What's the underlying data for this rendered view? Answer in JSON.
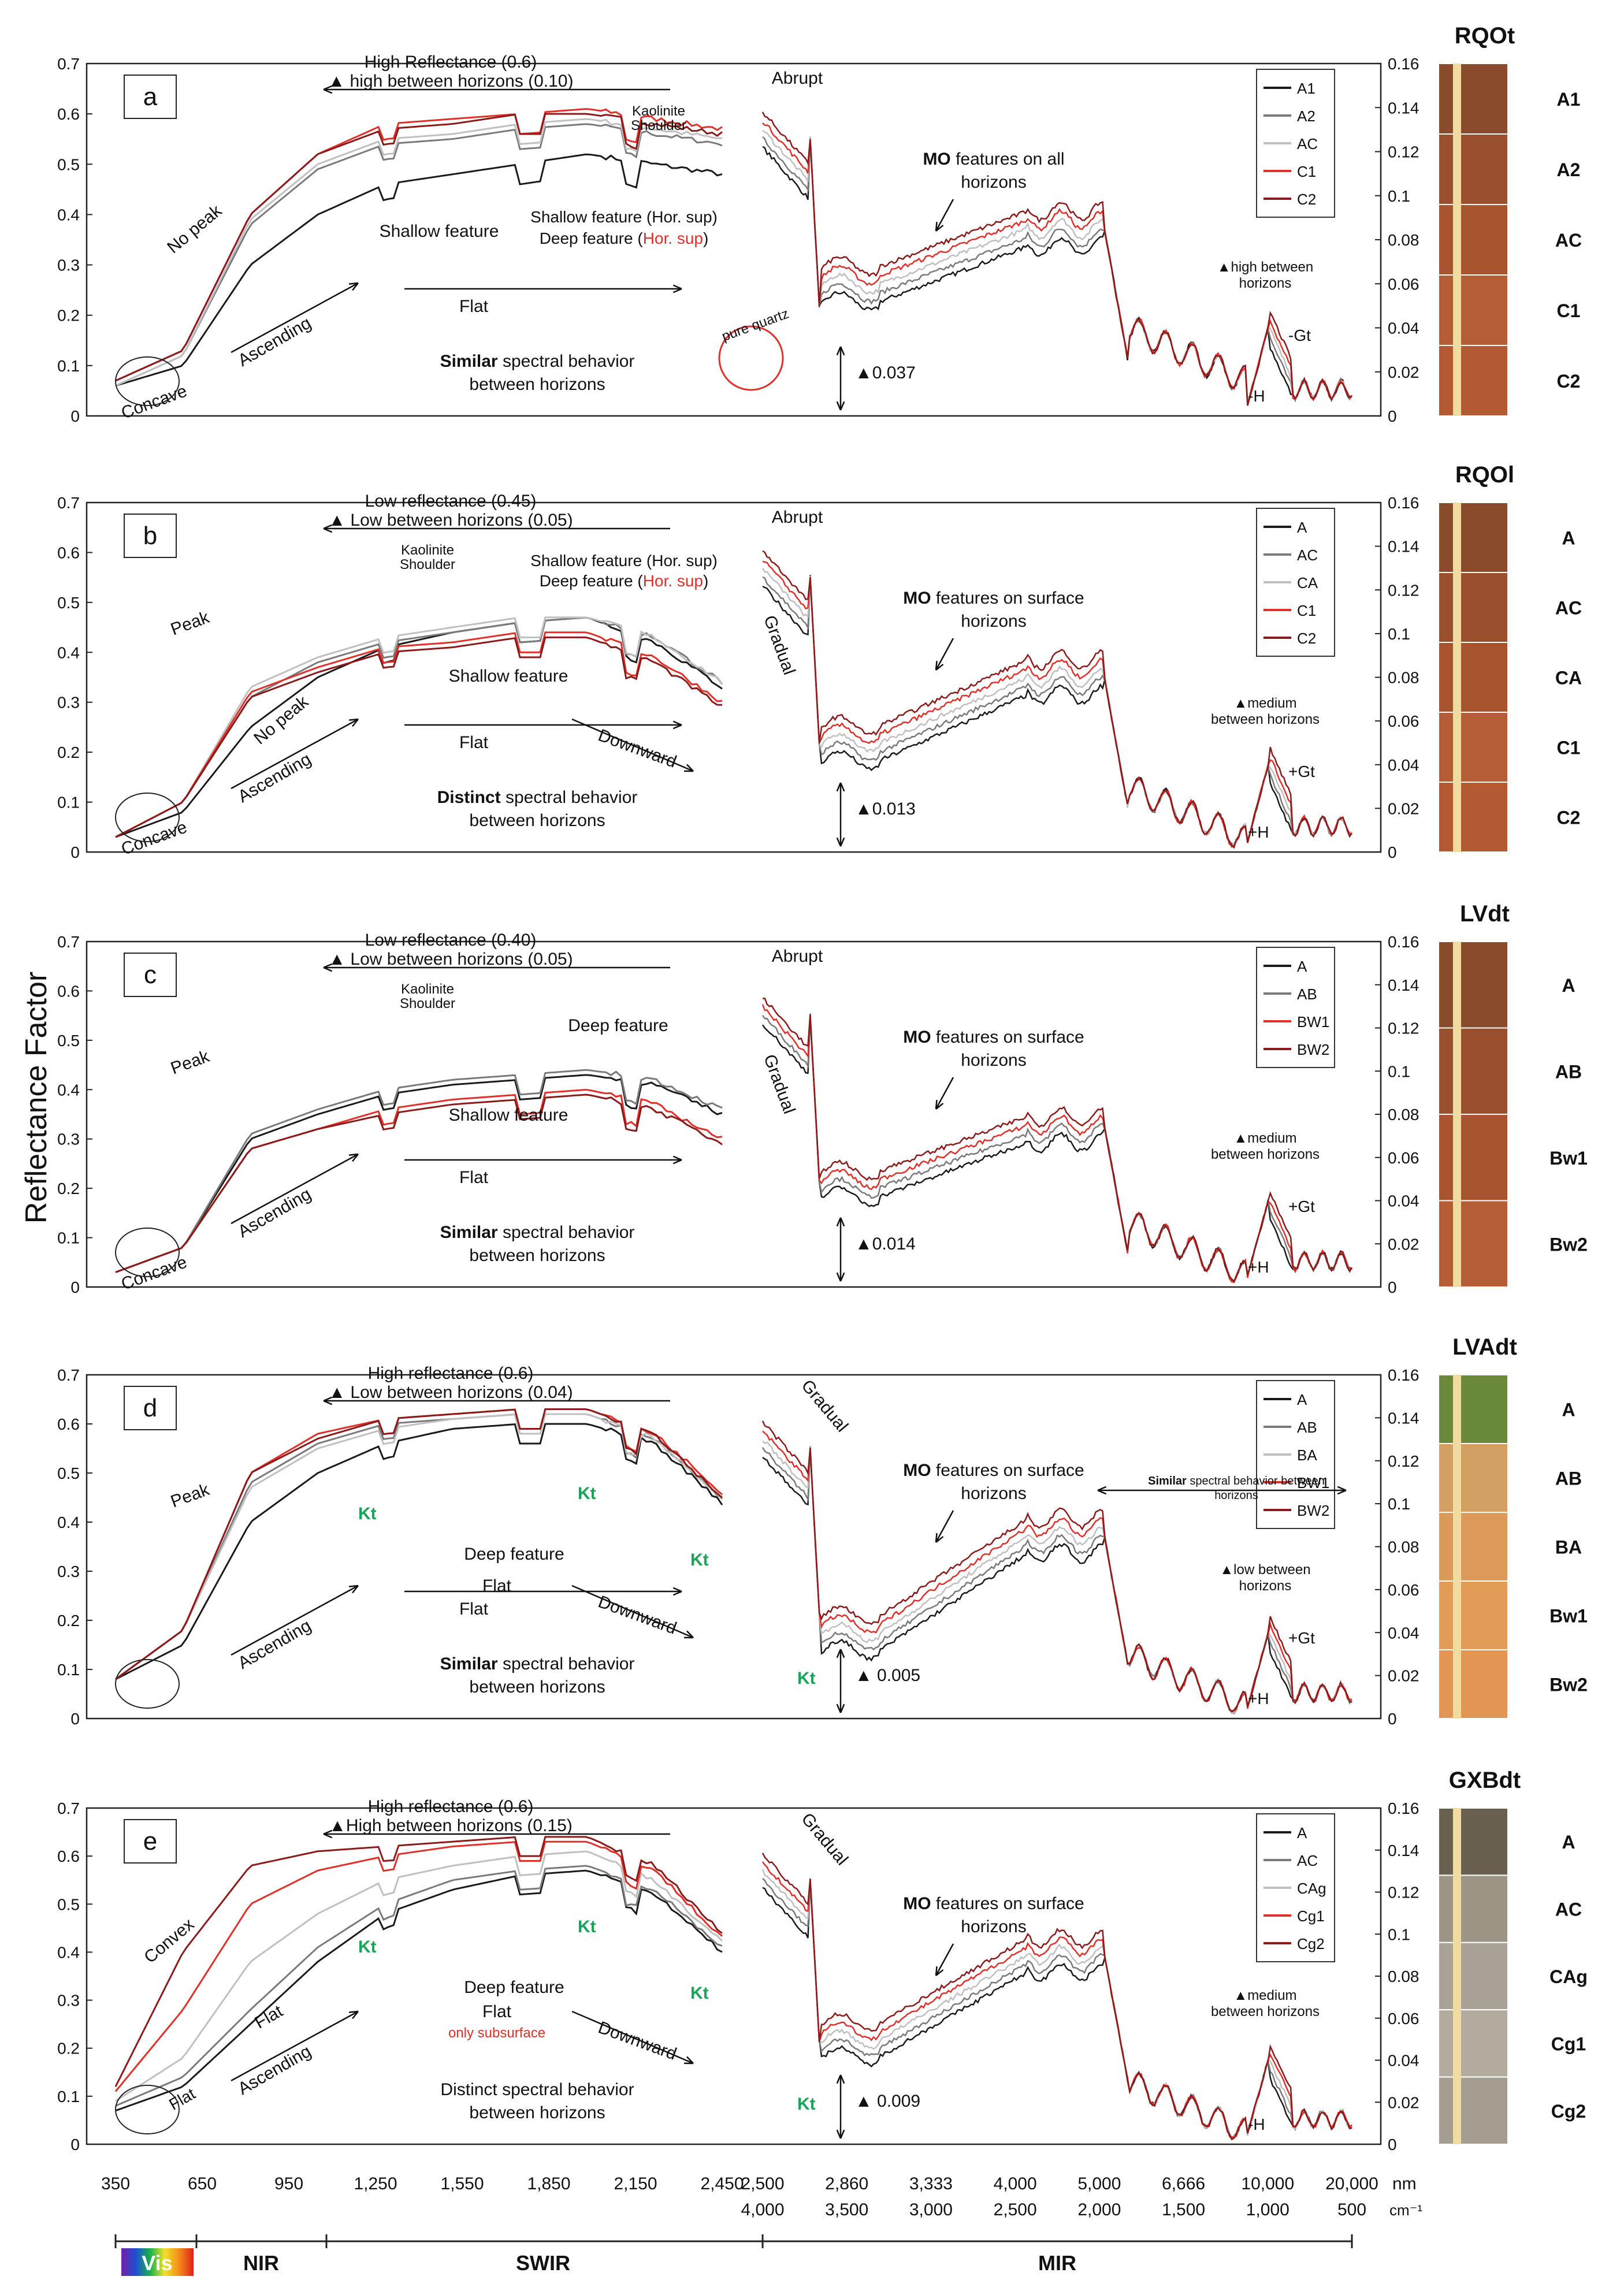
{
  "figure": {
    "y_axis_label": "Reflectance Factor",
    "x_ticks_vnir": [
      "350",
      "650",
      "950",
      "1,250",
      "1,550",
      "1,850",
      "2,150",
      "2,450"
    ],
    "x_ticks_mir_nm": [
      "2,500",
      "2,860",
      "3,333",
      "4,000",
      "5,000",
      "6,666",
      "10,000",
      "20,000"
    ],
    "x_ticks_mir_cm": [
      "4,000",
      "3,500",
      "3,000",
      "2,500",
      "2,000",
      "1,500",
      "1,000",
      "500"
    ],
    "unit_nm": "nm",
    "unit_cm": "cm⁻¹",
    "regions": [
      "Vis",
      "NIR",
      "SWIR",
      "MIR"
    ]
  },
  "colors": {
    "black": "#1a1a1a",
    "gray": "#7a7a7a",
    "lightgray": "#c0c0c0",
    "red": "#e0302a",
    "darkred": "#8b1a1a",
    "green": "#18a558"
  },
  "chart_data": [
    {
      "type": "line",
      "panel": "a",
      "profile": "RQOt",
      "ylim_vnir": [
        0,
        0.7
      ],
      "ylim_mir": [
        0,
        0.16
      ],
      "yticks_vnir": [
        "0",
        "0.1",
        "0.2",
        "0.3",
        "0.4",
        "0.5",
        "0.6",
        "0.7"
      ],
      "yticks_mir": [
        "0",
        "0.02",
        "0.04",
        "0.06",
        "0.08",
        "0.1",
        "0.12",
        "0.14",
        "0.16"
      ],
      "legend": [
        "A1",
        "A2",
        "AC",
        "C1",
        "C2"
      ],
      "horizons": [
        "A1",
        "A2",
        "AC",
        "C1",
        "C2"
      ],
      "series_vnir": [
        {
          "name": "A1",
          "color": "black",
          "values": [
            0.06,
            0.1,
            0.3,
            0.4,
            0.46,
            0.48,
            0.5,
            0.52,
            0.5,
            0.48
          ]
        },
        {
          "name": "A2",
          "color": "gray",
          "values": [
            0.06,
            0.12,
            0.38,
            0.49,
            0.54,
            0.55,
            0.57,
            0.58,
            0.56,
            0.54
          ]
        },
        {
          "name": "AC",
          "color": "lightgray",
          "values": [
            0.06,
            0.12,
            0.39,
            0.5,
            0.55,
            0.56,
            0.58,
            0.59,
            0.57,
            0.55
          ]
        },
        {
          "name": "C1",
          "color": "red",
          "values": [
            0.07,
            0.13,
            0.4,
            0.52,
            0.58,
            0.59,
            0.6,
            0.61,
            0.59,
            0.57
          ]
        },
        {
          "name": "C2",
          "color": "darkred",
          "values": [
            0.07,
            0.13,
            0.4,
            0.52,
            0.57,
            0.58,
            0.6,
            0.6,
            0.58,
            0.56
          ]
        }
      ],
      "series_mir_level": [
        0.06,
        0.085,
        0.04
      ],
      "annotations": {
        "top": "High Reflectance (0.6)",
        "top2": "▲ high between horizons (0.10)",
        "kaolinite": "Kaolinite\nShoulder",
        "nopeak": "No peak",
        "shallow": "Shallow feature",
        "shallow_sup": "Shallow feature (Hor. sup)",
        "deep_sup_a": "Deep feature (",
        "deep_sup_b": "Hor. sup",
        "deep_sup_c": ")",
        "ascending": "Ascending",
        "flat": "Flat",
        "concave": "Concave",
        "behavior_bold": "Similar",
        "behavior_rest": " spectral behavior",
        "behavior2": "between horizons",
        "abrupt": "Abrupt",
        "quartz": "pure quartz",
        "mo_bold": "MO",
        "mo_rest": " features on all",
        "mo2": "horizons",
        "delta": "▲0.037",
        "between1": "▲high between",
        "between2": "horizons",
        "gt": "-Gt",
        "h": "-H"
      }
    },
    {
      "type": "line",
      "panel": "b",
      "profile": "RQOl",
      "ylim_vnir": [
        0,
        0.7
      ],
      "ylim_mir": [
        0,
        0.16
      ],
      "yticks_vnir": [
        "0",
        "0.1",
        "0.2",
        "0.3",
        "0.4",
        "0.5",
        "0.6",
        "0.7"
      ],
      "yticks_mir": [
        "0",
        "0.02",
        "0.04",
        "0.06",
        "0.08",
        "0.1",
        "0.12",
        "0.14",
        "0.16"
      ],
      "legend": [
        "A",
        "AC",
        "CA",
        "C1",
        "C2"
      ],
      "horizons": [
        "A",
        "AC",
        "CA",
        "C1",
        "C2"
      ],
      "series_vnir": [
        {
          "name": "A",
          "color": "black",
          "values": [
            0.03,
            0.08,
            0.25,
            0.35,
            0.41,
            0.44,
            0.46,
            0.47,
            0.42,
            0.33
          ]
        },
        {
          "name": "AC",
          "color": "gray",
          "values": [
            0.03,
            0.1,
            0.31,
            0.38,
            0.42,
            0.44,
            0.46,
            0.47,
            0.43,
            0.34
          ]
        },
        {
          "name": "CA",
          "color": "lightgray",
          "values": [
            0.03,
            0.1,
            0.33,
            0.39,
            0.43,
            0.45,
            0.47,
            0.47,
            0.43,
            0.34
          ]
        },
        {
          "name": "C1",
          "color": "red",
          "values": [
            0.03,
            0.1,
            0.32,
            0.37,
            0.41,
            0.42,
            0.44,
            0.44,
            0.39,
            0.3
          ]
        },
        {
          "name": "C2",
          "color": "darkred",
          "values": [
            0.03,
            0.1,
            0.31,
            0.36,
            0.4,
            0.41,
            0.43,
            0.43,
            0.38,
            0.29
          ]
        }
      ],
      "series_mir_level": [
        0.05,
        0.08,
        0.03
      ],
      "annotations": {
        "top": "Low reflectance (0.45)",
        "top2": "▲ Low between horizons (0.05)",
        "kaolinite": "Kaolinite\nShoulder",
        "shallow_sup": "Shallow feature (Hor. sup)",
        "deep_sup_a": "Deep feature (",
        "deep_sup_b": "Hor. sup",
        "deep_sup_c": ")",
        "peak": "Peak",
        "nopeak": "No peak",
        "shallow": "Shallow feature",
        "ascending": "Ascending",
        "flat": "Flat",
        "downward": "Downward",
        "concave": "Concave",
        "behavior_bold": "Distinct",
        "behavior_rest": " spectral behavior",
        "behavior2": "between horizons",
        "abrupt": "Abrupt",
        "gradual": "Gradual",
        "mo_bold": "MO",
        "mo_rest": " features on surface",
        "mo2": "horizons",
        "delta": "▲0.013",
        "between1": "▲medium",
        "between2": "between horizons",
        "gt": "+Gt",
        "h": "+H"
      }
    },
    {
      "type": "line",
      "panel": "c",
      "profile": "LVdt",
      "ylim_vnir": [
        0,
        0.7
      ],
      "ylim_mir": [
        0,
        0.16
      ],
      "yticks_vnir": [
        "0",
        "0.1",
        "0.2",
        "0.3",
        "0.4",
        "0.5",
        "0.6",
        "0.7"
      ],
      "yticks_mir": [
        "0",
        "0.02",
        "0.04",
        "0.06",
        "0.08",
        "0.1",
        "0.12",
        "0.14",
        "0.16"
      ],
      "legend": [
        "A",
        "AB",
        "BW1",
        "BW2"
      ],
      "horizons": [
        "A",
        "AB",
        "Bw1",
        "Bw2"
      ],
      "series_vnir": [
        {
          "name": "A",
          "color": "black",
          "values": [
            0.03,
            0.08,
            0.3,
            0.35,
            0.39,
            0.41,
            0.42,
            0.43,
            0.41,
            0.35
          ]
        },
        {
          "name": "AB",
          "color": "gray",
          "values": [
            0.03,
            0.08,
            0.31,
            0.36,
            0.4,
            0.42,
            0.43,
            0.44,
            0.42,
            0.36
          ]
        },
        {
          "name": "BW1",
          "color": "red",
          "values": [
            0.03,
            0.08,
            0.28,
            0.32,
            0.36,
            0.38,
            0.39,
            0.4,
            0.37,
            0.3
          ]
        },
        {
          "name": "BW2",
          "color": "darkred",
          "values": [
            0.03,
            0.08,
            0.28,
            0.32,
            0.35,
            0.37,
            0.38,
            0.39,
            0.36,
            0.29
          ]
        }
      ],
      "series_mir_level": [
        0.05,
        0.075,
        0.03
      ],
      "annotations": {
        "top": "Low reflectance (0.40)",
        "top2": "▲  Low between horizons (0.05)",
        "kaolinite": "Kaolinite\nShoulder",
        "deep": "Deep feature",
        "peak": "Peak",
        "shallow": "Shallow feature",
        "ascending": "Ascending",
        "flat": "Flat",
        "concave": "Concave",
        "behavior_bold": "Similar",
        "behavior_rest": " spectral behavior",
        "behavior2": "between horizons",
        "abrupt": "Abrupt",
        "gradual": "Gradual",
        "mo_bold": "MO",
        "mo_rest": " features on surface",
        "mo2": "horizons",
        "delta": "▲0.014",
        "between1": "▲medium",
        "between2": "between horizons",
        "gt": "+Gt",
        "h": "+H"
      }
    },
    {
      "type": "line",
      "panel": "d",
      "profile": "LVAdt",
      "ylim_vnir": [
        0,
        0.7
      ],
      "ylim_mir": [
        0,
        0.16
      ],
      "yticks_vnir": [
        "0",
        "0.1",
        "0.2",
        "0.3",
        "0.4",
        "0.5",
        "0.6",
        "0.7"
      ],
      "yticks_mir": [
        "0",
        "0.02",
        "0.04",
        "0.06",
        "0.08",
        "0.1",
        "0.12",
        "0.14",
        "0.16"
      ],
      "legend": [
        "A",
        "AB",
        "BA",
        "BW1",
        "BW2"
      ],
      "horizons": [
        "A",
        "AB",
        "BA",
        "Bw1",
        "Bw2"
      ],
      "series_vnir": [
        {
          "name": "A",
          "color": "black",
          "values": [
            0.08,
            0.15,
            0.4,
            0.5,
            0.56,
            0.59,
            0.6,
            0.6,
            0.56,
            0.44
          ]
        },
        {
          "name": "AB",
          "color": "gray",
          "values": [
            0.08,
            0.18,
            0.48,
            0.56,
            0.6,
            0.61,
            0.62,
            0.62,
            0.57,
            0.45
          ]
        },
        {
          "name": "BA",
          "color": "lightgray",
          "values": [
            0.08,
            0.18,
            0.47,
            0.55,
            0.59,
            0.61,
            0.62,
            0.62,
            0.57,
            0.45
          ]
        },
        {
          "name": "BW1",
          "color": "red",
          "values": [
            0.08,
            0.18,
            0.5,
            0.58,
            0.61,
            0.62,
            0.63,
            0.63,
            0.58,
            0.46
          ]
        },
        {
          "name": "BW2",
          "color": "darkred",
          "values": [
            0.08,
            0.18,
            0.5,
            0.57,
            0.61,
            0.62,
            0.63,
            0.63,
            0.58,
            0.45
          ]
        }
      ],
      "series_mir_level": [
        0.04,
        0.085,
        0.03
      ],
      "annotations": {
        "top": "High reflectance (0.6)",
        "top2": "▲ Low between horizons (0.04)",
        "peak": "Peak",
        "deep": "Deep feature",
        "kt": "Kt",
        "ascending": "Ascending",
        "flat": "Flat",
        "downward": "Downward",
        "flat2": "Flat",
        "behavior_bold": "Similar",
        "behavior_rest": " spectral behavior",
        "behavior2": "between horizons",
        "gradual": "Gradual",
        "mo_bold": "MO",
        "mo_rest": " features on surface",
        "mo2": "horizons",
        "similar_bold": "Similar",
        "similar_rest": " spectral behavior between",
        "similar2": "horizons",
        "delta": "▲ 0.005",
        "between1": "▲low between",
        "between2": "horizons",
        "gt": "+Gt",
        "h": "+H"
      }
    },
    {
      "type": "line",
      "panel": "e",
      "profile": "GXBdt",
      "ylim_vnir": [
        0,
        0.7
      ],
      "ylim_mir": [
        0,
        0.16
      ],
      "yticks_vnir": [
        "0",
        "0.1",
        "0.2",
        "0.3",
        "0.4",
        "0.5",
        "0.6",
        "0.7"
      ],
      "yticks_mir": [
        "0",
        "0.02",
        "0.04",
        "0.06",
        "0.08",
        "0.1",
        "0.12",
        "0.14",
        "0.16"
      ],
      "legend": [
        "A",
        "AC",
        "CAg",
        "Cg1",
        "Cg2"
      ],
      "horizons": [
        "A",
        "AC",
        "CAg",
        "Cg1",
        "Cg2"
      ],
      "series_vnir": [
        {
          "name": "A",
          "color": "black",
          "values": [
            0.07,
            0.12,
            0.25,
            0.38,
            0.48,
            0.53,
            0.56,
            0.57,
            0.52,
            0.4
          ]
        },
        {
          "name": "AC",
          "color": "gray",
          "values": [
            0.08,
            0.14,
            0.28,
            0.41,
            0.5,
            0.55,
            0.57,
            0.58,
            0.53,
            0.41
          ]
        },
        {
          "name": "CAg",
          "color": "lightgray",
          "values": [
            0.09,
            0.18,
            0.38,
            0.48,
            0.55,
            0.58,
            0.6,
            0.61,
            0.55,
            0.42
          ]
        },
        {
          "name": "Cg1",
          "color": "red",
          "values": [
            0.11,
            0.28,
            0.5,
            0.57,
            0.6,
            0.62,
            0.63,
            0.63,
            0.57,
            0.43
          ]
        },
        {
          "name": "Cg2",
          "color": "darkred",
          "values": [
            0.12,
            0.4,
            0.58,
            0.61,
            0.62,
            0.63,
            0.64,
            0.64,
            0.58,
            0.44
          ]
        }
      ],
      "series_mir_level": [
        0.05,
        0.09,
        0.03
      ],
      "annotations": {
        "top": "High reflectance (0.6)",
        "top2": "▲High between horizons (0.15)",
        "convex": "Convex",
        "flat": "Flat",
        "flat_low": "Flat",
        "flat2": "Flat",
        "only_sub": "only subsurface",
        "kt": "Kt",
        "deep": "Deep feature",
        "ascending": "Ascending",
        "downward": "Downward",
        "behavior1": "Distinct spectral behavior",
        "behavior2": "between horizons",
        "gradual": "Gradual",
        "mo_bold": "MO",
        "mo_rest": " features on surface",
        "mo2": "horizons",
        "delta": "▲ 0.009",
        "between1": "▲medium",
        "between2": "between horizons",
        "h": "-H"
      }
    }
  ]
}
